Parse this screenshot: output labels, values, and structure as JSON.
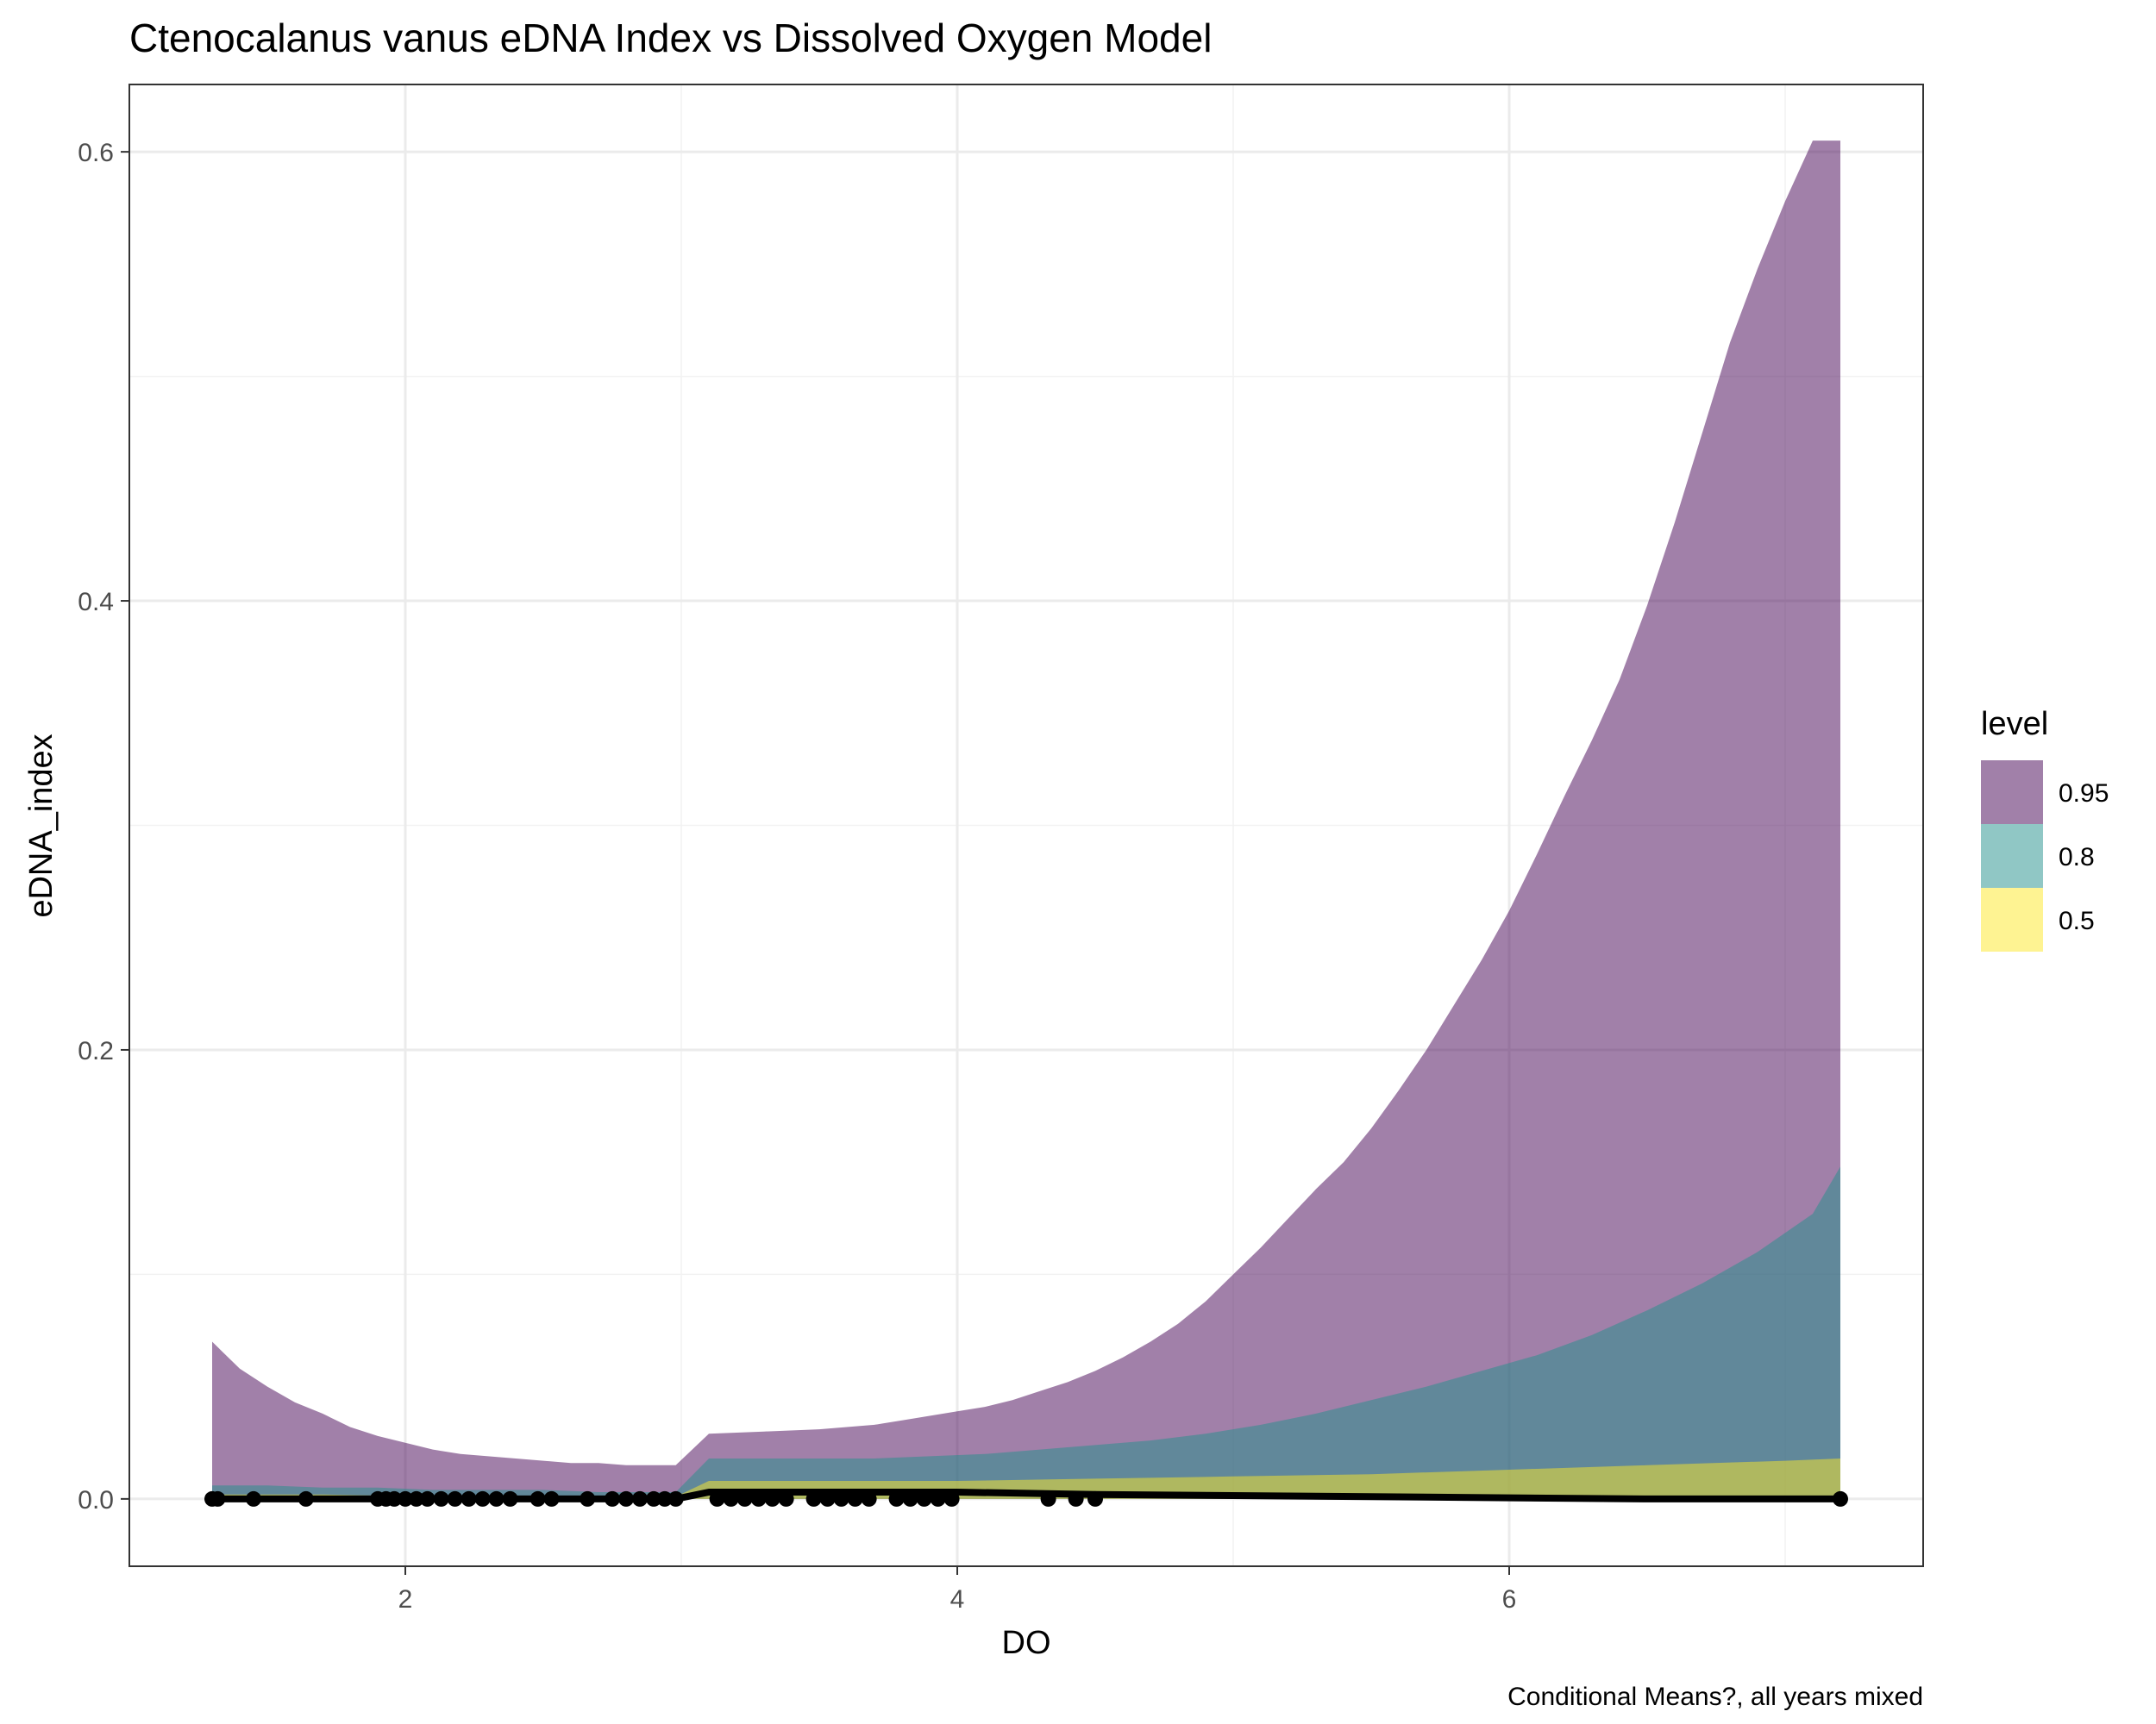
{
  "chart_data": {
    "type": "area",
    "title": "Ctenocalanus vanus eDNA Index vs Dissolved Oxygen Model",
    "caption": "Conditional Means?, all years mixed",
    "xlabel": "DO",
    "ylabel": "eDNA_index",
    "xlim": [
      1.0,
      7.5
    ],
    "ylim": [
      -0.03,
      0.63
    ],
    "x_ticks": [
      2,
      4,
      6
    ],
    "x_tick_labels": [
      "2",
      "4",
      "6"
    ],
    "y_ticks": [
      0.0,
      0.2,
      0.4,
      0.6
    ],
    "y_tick_labels": [
      "0.0",
      "0.2",
      "0.4",
      "0.6"
    ],
    "grid": true,
    "legend": {
      "title": "level",
      "placement": "right",
      "entries": [
        {
          "label": "0.95",
          "color": "#440154"
        },
        {
          "label": "0.8",
          "color": "#21908C"
        },
        {
          "label": "0.5",
          "color": "#FDE725"
        }
      ]
    },
    "ribbon_opacity": 0.5,
    "series": [
      {
        "level": "0.95",
        "color": "#440154",
        "x": [
          1.3,
          1.4,
          1.5,
          1.6,
          1.7,
          1.8,
          1.9,
          2.0,
          2.1,
          2.2,
          2.3,
          2.4,
          2.5,
          2.6,
          2.7,
          2.8,
          2.9,
          2.98,
          3.1,
          3.3,
          3.5,
          3.7,
          3.8,
          3.9,
          4.0,
          4.1,
          4.2,
          4.3,
          4.4,
          4.5,
          4.6,
          4.7,
          4.8,
          4.9,
          5.0,
          5.1,
          5.2,
          5.3,
          5.4,
          5.5,
          5.6,
          5.7,
          5.8,
          5.9,
          6.0,
          6.1,
          6.2,
          6.3,
          6.4,
          6.5,
          6.6,
          6.7,
          6.8,
          6.9,
          7.0,
          7.1,
          7.2
        ],
        "lower": [
          0.0,
          0.0,
          0.0,
          0.0,
          0.0,
          0.0,
          0.0,
          0.0,
          0.0,
          0.0,
          0.0,
          0.0,
          0.0,
          0.0,
          0.0,
          0.0,
          0.0,
          0.0,
          0.0,
          0.0,
          0.0,
          0.0,
          0.0,
          0.0,
          0.0,
          0.0,
          0.0,
          0.0,
          0.0,
          0.0,
          0.0,
          0.0,
          0.0,
          0.0,
          0.0,
          0.0,
          0.0,
          0.0,
          0.0,
          0.0,
          0.0,
          0.0,
          0.0,
          0.0,
          0.0,
          0.0,
          0.0,
          0.0,
          0.0,
          0.0,
          0.0,
          0.0,
          0.0,
          0.0,
          0.0,
          0.0,
          0.0
        ],
        "upper": [
          0.07,
          0.058,
          0.05,
          0.043,
          0.038,
          0.032,
          0.028,
          0.025,
          0.022,
          0.02,
          0.019,
          0.018,
          0.017,
          0.016,
          0.016,
          0.015,
          0.015,
          0.015,
          0.029,
          0.03,
          0.031,
          0.033,
          0.035,
          0.037,
          0.039,
          0.041,
          0.044,
          0.048,
          0.052,
          0.057,
          0.063,
          0.07,
          0.078,
          0.088,
          0.1,
          0.112,
          0.125,
          0.138,
          0.15,
          0.165,
          0.182,
          0.2,
          0.22,
          0.24,
          0.262,
          0.287,
          0.313,
          0.338,
          0.365,
          0.398,
          0.435,
          0.475,
          0.515,
          0.548,
          0.578,
          0.605,
          0.605
        ]
      },
      {
        "level": "0.8",
        "color": "#21908C",
        "x": [
          1.3,
          1.5,
          1.7,
          1.9,
          2.1,
          2.3,
          2.5,
          2.7,
          2.98,
          3.1,
          3.3,
          3.5,
          3.7,
          3.9,
          4.1,
          4.3,
          4.5,
          4.7,
          4.9,
          5.1,
          5.3,
          5.5,
          5.7,
          5.9,
          6.1,
          6.3,
          6.5,
          6.7,
          6.9,
          7.1,
          7.2
        ],
        "lower": [
          0.0,
          0.0,
          0.0,
          0.0,
          0.0,
          0.0,
          0.0,
          0.0,
          0.0,
          0.0,
          0.0,
          0.0,
          0.0,
          0.0,
          0.0,
          0.0,
          0.0,
          0.0,
          0.0,
          0.0,
          0.0,
          0.0,
          0.0,
          0.0,
          0.0,
          0.0,
          0.0,
          0.0,
          0.0,
          0.0,
          0.0
        ],
        "upper": [
          0.006,
          0.006,
          0.005,
          0.005,
          0.004,
          0.004,
          0.004,
          0.003,
          0.003,
          0.018,
          0.018,
          0.018,
          0.018,
          0.019,
          0.02,
          0.022,
          0.024,
          0.026,
          0.029,
          0.033,
          0.038,
          0.044,
          0.05,
          0.057,
          0.064,
          0.073,
          0.084,
          0.096,
          0.11,
          0.127,
          0.148
        ]
      },
      {
        "level": "0.5",
        "color": "#FDE725",
        "x": [
          1.3,
          1.7,
          2.1,
          2.5,
          2.98,
          3.1,
          3.5,
          4.0,
          4.5,
          5.0,
          5.5,
          6.0,
          6.5,
          7.0,
          7.2
        ],
        "lower": [
          0.0,
          0.0,
          0.0,
          0.0,
          0.0,
          0.0,
          0.0,
          0.0,
          0.0,
          0.0,
          0.0,
          0.0,
          0.0,
          0.0,
          0.0
        ],
        "upper": [
          0.002,
          0.002,
          0.001,
          0.001,
          0.001,
          0.008,
          0.008,
          0.008,
          0.009,
          0.01,
          0.011,
          0.013,
          0.015,
          0.017,
          0.018
        ]
      }
    ],
    "median_line": {
      "x": [
        1.3,
        2.98,
        3.1,
        4.0,
        4.5,
        5.5,
        6.5,
        7.2
      ],
      "y": [
        0.0,
        0.0,
        0.003,
        0.003,
        0.002,
        0.001,
        0.0,
        0.0
      ],
      "color": "#000000"
    },
    "points": {
      "color": "#000000",
      "x": [
        1.3,
        1.32,
        1.45,
        1.64,
        1.9,
        1.93,
        1.96,
        2.0,
        2.04,
        2.08,
        2.13,
        2.18,
        2.23,
        2.28,
        2.33,
        2.38,
        2.48,
        2.53,
        2.66,
        2.75,
        2.8,
        2.85,
        2.9,
        2.94,
        2.98,
        3.13,
        3.18,
        3.23,
        3.28,
        3.33,
        3.38,
        3.48,
        3.53,
        3.58,
        3.63,
        3.68,
        3.78,
        3.83,
        3.88,
        3.93,
        3.98,
        4.33,
        4.43,
        4.5,
        7.2
      ],
      "y": [
        0,
        0,
        0,
        0,
        0,
        0,
        0,
        0,
        0,
        0,
        0,
        0,
        0,
        0,
        0,
        0,
        0,
        0,
        0,
        0,
        0,
        0,
        0,
        0,
        0,
        0,
        0,
        0,
        0,
        0,
        0,
        0,
        0,
        0,
        0,
        0,
        0,
        0,
        0,
        0,
        0,
        0,
        0,
        0,
        0
      ]
    }
  }
}
